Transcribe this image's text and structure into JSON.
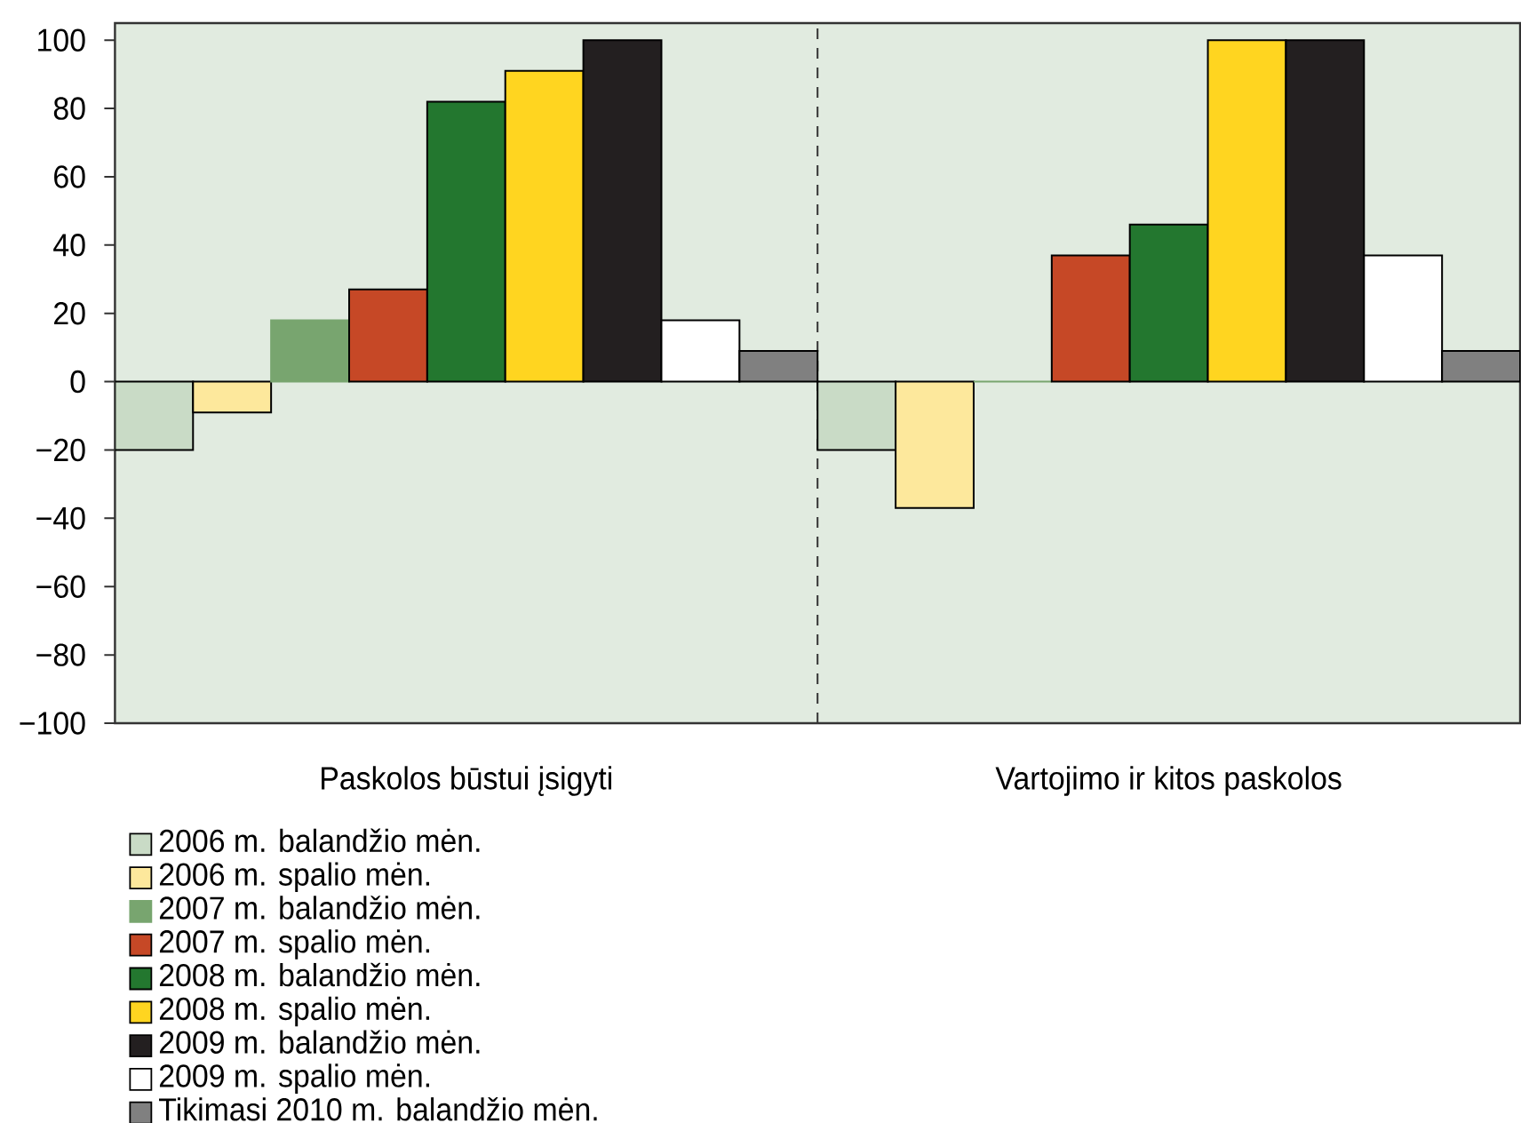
{
  "chart_data": {
    "type": "bar",
    "categories": [
      "Paskolos būstui įsigyti",
      "Vartojimo ir kitos paskolos"
    ],
    "series": [
      {
        "name": "2006 m. balandžio mėn.",
        "color": "#c9dbc6",
        "values": [
          -20,
          -20
        ]
      },
      {
        "name": "2006 m. spalio mėn.",
        "color": "#fde89c",
        "values": [
          -9,
          -37
        ]
      },
      {
        "name": "2007 m. balandžio mėn.",
        "color": "#78a56f",
        "values": [
          18,
          0
        ]
      },
      {
        "name": "2007 m. spalio mėn.",
        "color": "#c64826",
        "values": [
          27,
          37
        ]
      },
      {
        "name": "2008 m. balandžio mėn.",
        "color": "#23772f",
        "values": [
          82,
          46
        ]
      },
      {
        "name": "2008 m. spalio mėn.",
        "color": "#ffd520",
        "values": [
          91,
          100
        ]
      },
      {
        "name": "2009 m. balandžio mėn.",
        "color": "#231f20",
        "values": [
          100,
          100
        ]
      },
      {
        "name": "2009 m. spalio mėn.",
        "color": "#ffffff",
        "values": [
          18,
          37
        ]
      },
      {
        "name": "Tikimasi 2010 m. balandžio mėn.",
        "color": "#808080",
        "values": [
          9,
          9
        ]
      }
    ],
    "ylim": [
      -100,
      105
    ],
    "yticks": [
      {
        "value": -100,
        "label": "−100"
      },
      {
        "value": -80,
        "label": "−80"
      },
      {
        "value": -60,
        "label": "−60"
      },
      {
        "value": -40,
        "label": "−40"
      },
      {
        "value": -20,
        "label": "−20"
      },
      0,
      20,
      40,
      60,
      80,
      100
    ],
    "legend": "bottom left"
  }
}
